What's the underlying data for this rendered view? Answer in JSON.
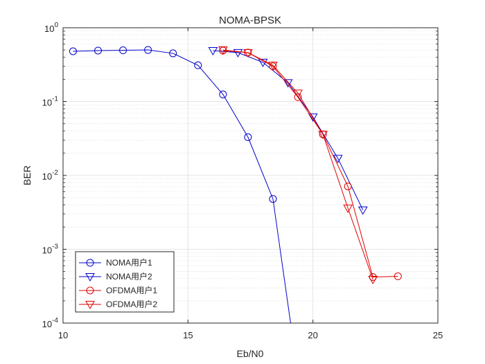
{
  "chart_data": {
    "type": "line",
    "title": "NOMA-BPSK",
    "xlabel": "Eb/N0",
    "ylabel": "BER",
    "yscale": "log",
    "xlim": [
      10,
      25
    ],
    "ylim": [
      0.0001,
      1
    ],
    "grid": true,
    "minor_grid": true,
    "legend_position": "bottom-left",
    "x_ticks": [
      "10",
      "15",
      "20",
      "25"
    ],
    "y_ticks": [
      {
        "base": "10",
        "exp": "-4"
      },
      {
        "base": "10",
        "exp": "-3"
      },
      {
        "base": "10",
        "exp": "-2"
      },
      {
        "base": "10",
        "exp": "-1"
      },
      {
        "base": "10",
        "exp": "0"
      }
    ],
    "series": [
      {
        "name": "NOMA用户1",
        "color": "#0000cc",
        "marker": "circle",
        "x": [
          10.4,
          11.4,
          12.4,
          13.4,
          14.4,
          15.4,
          16.4,
          17.4,
          18.4,
          19.4
        ],
        "y": [
          0.48,
          0.49,
          0.495,
          0.5,
          0.45,
          0.31,
          0.125,
          0.033,
          0.0048,
          2e-05
        ]
      },
      {
        "name": "NOMA用户2",
        "color": "#0000cc",
        "marker": "triangle-down",
        "x": [
          16.0,
          17.0,
          18.0,
          19.0,
          20.0,
          21.0,
          22.0
        ],
        "y": [
          0.49,
          0.46,
          0.34,
          0.18,
          0.062,
          0.017,
          0.0034
        ]
      },
      {
        "name": "OFDMA用户1",
        "color": "#dd0000",
        "marker": "circle",
        "x": [
          16.4,
          17.4,
          18.4,
          19.4,
          20.4,
          21.4,
          22.4,
          23.4
        ],
        "y": [
          0.49,
          0.46,
          0.3,
          0.115,
          0.036,
          0.0071,
          0.00042,
          0.00043
        ]
      },
      {
        "name": "OFDMA用户2",
        "color": "#dd0000",
        "marker": "triangle-down",
        "x": [
          16.4,
          17.4,
          18.4,
          19.4,
          20.4,
          21.4,
          22.4
        ],
        "y": [
          0.5,
          0.46,
          0.31,
          0.13,
          0.036,
          0.0036,
          0.00039
        ]
      }
    ]
  }
}
